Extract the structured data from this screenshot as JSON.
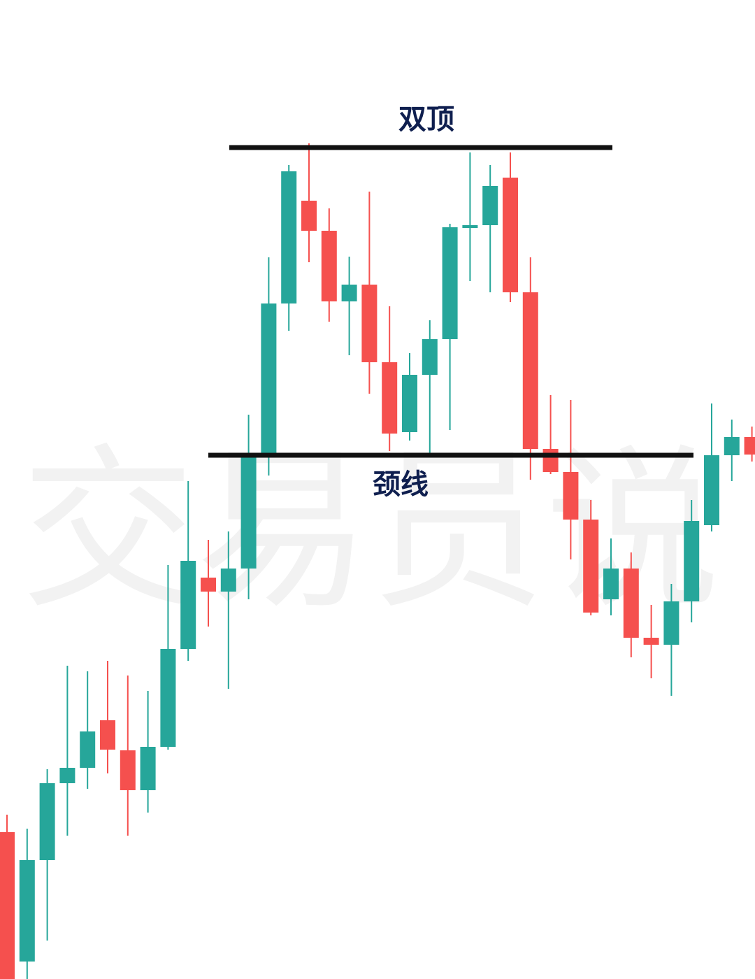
{
  "chart_data": {
    "type": "candlestick",
    "watermark": "交易员说",
    "ylim": [
      0,
      1400
    ],
    "up_color": "#26a69a",
    "down_color": "#f5504e",
    "open": [
      210,
      25,
      170,
      280,
      302,
      370,
      327,
      270,
      332,
      472,
      574,
      554,
      587,
      750,
      966,
      1113,
      1070,
      969,
      993,
      882,
      782,
      864,
      915,
      1074,
      1078,
      1146,
      982,
      758,
      725,
      657,
      543,
      587,
      488,
      478,
      540,
      649,
      749,
      775
    ],
    "high": [
      235,
      215,
      300,
      448,
      440,
      455,
      434,
      412,
      592,
      712,
      628,
      640,
      807,
      1032,
      1164,
      1195,
      1102,
      1033,
      1126,
      962,
      895,
      942,
      1080,
      1182,
      1164,
      1182,
      1032,
      835,
      828,
      685,
      630,
      610,
      535,
      565,
      685,
      823,
      800,
      790
    ],
    "low": [
      0,
      0,
      55,
      205,
      272,
      294,
      205,
      238,
      328,
      455,
      504,
      415,
      543,
      720,
      927,
      1025,
      940,
      892,
      837,
      755,
      770,
      750,
      785,
      998,
      982,
      968,
      714,
      722,
      600,
      520,
      520,
      460,
      430,
      405,
      510,
      640,
      712,
      740
    ],
    "close": [
      0,
      170,
      280,
      302,
      354,
      328,
      270,
      332,
      472,
      598,
      554,
      587,
      750,
      966,
      1155,
      1070,
      969,
      993,
      882,
      780,
      864,
      915,
      1075,
      1078,
      1134,
      982,
      758,
      725,
      657,
      524,
      587,
      488,
      478,
      540,
      655,
      749,
      775,
      750
    ],
    "annotations": [
      {
        "text": "双顶",
        "value": 1189
      },
      {
        "text": "颈线",
        "value": 749
      }
    ]
  }
}
